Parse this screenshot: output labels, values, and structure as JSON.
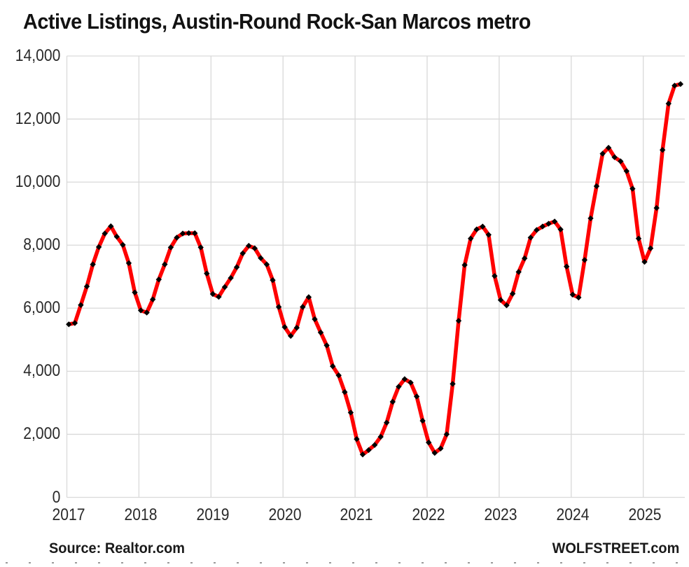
{
  "title": "Active Listings, Austin-Round Rock-San Marcos metro",
  "footer": {
    "source": "Source: Realtor.com",
    "watermark": "WOLFSTREET.com"
  },
  "chart_data": {
    "type": "line",
    "title": "Active Listings, Austin-Round Rock-San Marcos metro",
    "frequency": "monthly",
    "x_start": "2017-01",
    "x_end": "2025-07",
    "year_labels": [
      "2017",
      "2018",
      "2019",
      "2020",
      "2021",
      "2022",
      "2023",
      "2024",
      "2025"
    ],
    "y_tick_labels": [
      "0",
      "2,000",
      "4,000",
      "6,000",
      "8,000",
      "10,000",
      "12,000",
      "14,000"
    ],
    "ylim": [
      0,
      14000
    ],
    "grid": true,
    "legend": "none",
    "line_color": "#ff0000",
    "marker_color": "#000000",
    "grid_color": "#d9d9d9",
    "series": [
      {
        "name": "Active Listings",
        "values": [
          5490,
          5530,
          6100,
          6690,
          7390,
          7940,
          8370,
          8600,
          8270,
          8010,
          7430,
          6500,
          5930,
          5860,
          6280,
          6910,
          7390,
          7930,
          8240,
          8370,
          8380,
          8380,
          7930,
          7100,
          6450,
          6360,
          6670,
          6960,
          7300,
          7740,
          7980,
          7900,
          7590,
          7390,
          6890,
          6040,
          5400,
          5120,
          5380,
          6040,
          6350,
          5650,
          5230,
          4820,
          4160,
          3870,
          3340,
          2690,
          1850,
          1360,
          1500,
          1660,
          1920,
          2370,
          3030,
          3510,
          3750,
          3640,
          3200,
          2430,
          1740,
          1410,
          1550,
          2000,
          3600,
          5600,
          7370,
          8210,
          8500,
          8590,
          8330,
          7020,
          6260,
          6090,
          6460,
          7150,
          7580,
          8240,
          8480,
          8590,
          8680,
          8750,
          8500,
          7320,
          6430,
          6340,
          7530,
          8850,
          9870,
          10900,
          11090,
          10790,
          10660,
          10350,
          9790,
          8210,
          7470,
          7900,
          9180,
          11020,
          12490,
          13060,
          13110
        ]
      }
    ]
  }
}
